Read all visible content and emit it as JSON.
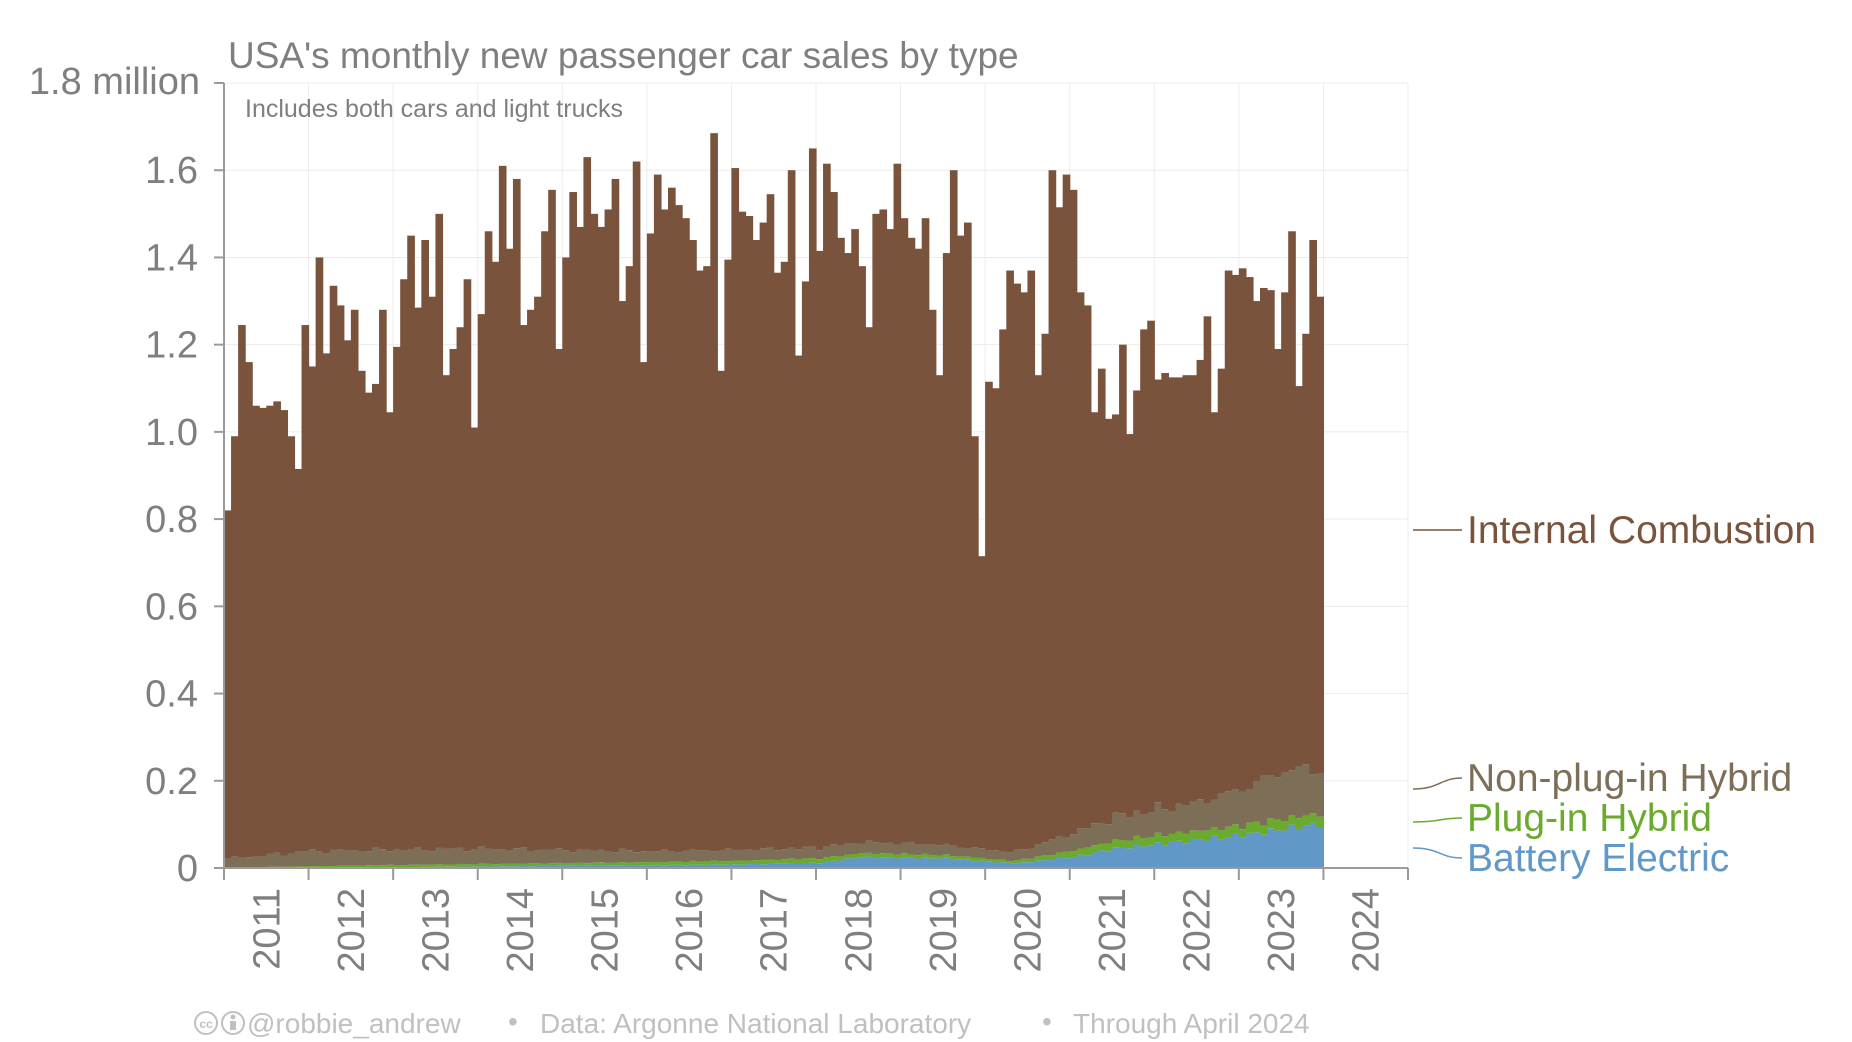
{
  "chart_data": {
    "type": "area",
    "title": "USA's monthly new passenger car sales by type",
    "subtitle": "Includes both cars and light trucks",
    "y_unit_label": "1.8 million",
    "ylim": [
      0,
      1.8
    ],
    "y_ticks": [
      "0",
      "0.2",
      "0.4",
      "0.6",
      "0.8",
      "1.0",
      "1.2",
      "1.4",
      "1.6"
    ],
    "x_tick_labels": [
      "2011",
      "2012",
      "2013",
      "2014",
      "2015",
      "2016",
      "2017",
      "2018",
      "2019",
      "2020",
      "2021",
      "2022",
      "2023",
      "2024"
    ],
    "x_start": "2011-01",
    "x_end": "2024-04",
    "grid": true,
    "legend_position": "right",
    "stacked": true,
    "colors": {
      "internal_combustion": "#7a533c",
      "non_plugin_hybrid": "#7d6e58",
      "plugin_hybrid": "#6aaa2c",
      "battery_electric": "#6198c8"
    },
    "series": [
      {
        "name": "Battery Electric",
        "color": "#6198c8",
        "values_anchor_points": [
          [
            2011.0,
            0.0
          ],
          [
            2013.0,
            0.002
          ],
          [
            2015.0,
            0.005
          ],
          [
            2017.0,
            0.008
          ],
          [
            2018.0,
            0.012
          ],
          [
            2018.5,
            0.025
          ],
          [
            2019.5,
            0.022
          ],
          [
            2020.3,
            0.01
          ],
          [
            2021.0,
            0.025
          ],
          [
            2021.5,
            0.045
          ],
          [
            2022.0,
            0.055
          ],
          [
            2022.5,
            0.065
          ],
          [
            2023.0,
            0.075
          ],
          [
            2023.5,
            0.09
          ],
          [
            2023.9,
            0.1
          ],
          [
            2024.3,
            0.09
          ]
        ]
      },
      {
        "name": "Plug-in Hybrid",
        "color": "#6aaa2c",
        "values_anchor_points": [
          [
            2011.0,
            0.001
          ],
          [
            2013.0,
            0.005
          ],
          [
            2016.0,
            0.007
          ],
          [
            2018.0,
            0.01
          ],
          [
            2020.3,
            0.006
          ],
          [
            2021.0,
            0.015
          ],
          [
            2022.0,
            0.02
          ],
          [
            2023.0,
            0.022
          ],
          [
            2024.3,
            0.025
          ]
        ]
      },
      {
        "name": "Non-plug-in Hybrid",
        "color": "#7d6e58",
        "values_anchor_points": [
          [
            2011.0,
            0.02
          ],
          [
            2012.0,
            0.035
          ],
          [
            2013.0,
            0.035
          ],
          [
            2014.0,
            0.035
          ],
          [
            2015.0,
            0.03
          ],
          [
            2016.0,
            0.025
          ],
          [
            2017.0,
            0.025
          ],
          [
            2018.0,
            0.025
          ],
          [
            2019.0,
            0.025
          ],
          [
            2020.3,
            0.02
          ],
          [
            2021.0,
            0.04
          ],
          [
            2021.5,
            0.055
          ],
          [
            2022.0,
            0.06
          ],
          [
            2022.5,
            0.065
          ],
          [
            2023.0,
            0.085
          ],
          [
            2023.5,
            0.11
          ],
          [
            2024.3,
            0.1
          ]
        ]
      },
      {
        "name": "Internal Combustion",
        "color": "#7a533c",
        "total_values": [
          0.82,
          0.99,
          1.245,
          1.16,
          1.06,
          1.055,
          1.06,
          1.07,
          1.05,
          0.99,
          0.915,
          1.245,
          1.15,
          1.4,
          1.18,
          1.335,
          1.29,
          1.21,
          1.28,
          1.14,
          1.09,
          1.11,
          1.28,
          1.045,
          1.195,
          1.35,
          1.45,
          1.285,
          1.44,
          1.31,
          1.5,
          1.13,
          1.19,
          1.24,
          1.35,
          1.01,
          1.27,
          1.46,
          1.39,
          1.61,
          1.42,
          1.58,
          1.245,
          1.28,
          1.31,
          1.46,
          1.555,
          1.19,
          1.4,
          1.55,
          1.47,
          1.63,
          1.5,
          1.47,
          1.51,
          1.58,
          1.3,
          1.38,
          1.62,
          1.16,
          1.455,
          1.59,
          1.51,
          1.56,
          1.52,
          1.49,
          1.44,
          1.37,
          1.38,
          1.685,
          1.14,
          1.395,
          1.605,
          1.505,
          1.495,
          1.44,
          1.48,
          1.545,
          1.365,
          1.39,
          1.6,
          1.175,
          1.345,
          1.65,
          1.415,
          1.615,
          1.55,
          1.445,
          1.41,
          1.465,
          1.38,
          1.24,
          1.5,
          1.51,
          1.465,
          1.615,
          1.49,
          1.445,
          1.42,
          1.49,
          1.28,
          1.13,
          1.41,
          1.6,
          1.45,
          1.48,
          0.99,
          0.715,
          1.115,
          1.1,
          1.235,
          1.37,
          1.34,
          1.32,
          1.37,
          1.13,
          1.225,
          1.6,
          1.515,
          1.59,
          1.555,
          1.32,
          1.29,
          1.045,
          1.145,
          1.03,
          1.04,
          1.2,
          0.995,
          1.095,
          1.235,
          1.255,
          1.12,
          1.135,
          1.125,
          1.125,
          1.13,
          1.13,
          1.165,
          1.265,
          1.045,
          1.145,
          1.37,
          1.36,
          1.375,
          1.355,
          1.3,
          1.33,
          1.325,
          1.19,
          1.32,
          1.46,
          1.105,
          1.225,
          1.44,
          1.31
        ]
      }
    ]
  },
  "legend": {
    "internal_combustion": "Internal Combustion",
    "non_plugin_hybrid": "Non-plug-in Hybrid",
    "plugin_hybrid": "Plug-in Hybrid",
    "battery_electric": "Battery Electric"
  },
  "footer": {
    "credit_icons": "cc-by-icons",
    "handle": "@robbie_andrew",
    "source": "Data: Argonne National Laboratory",
    "through": "Through April 2024",
    "separator": "•"
  }
}
